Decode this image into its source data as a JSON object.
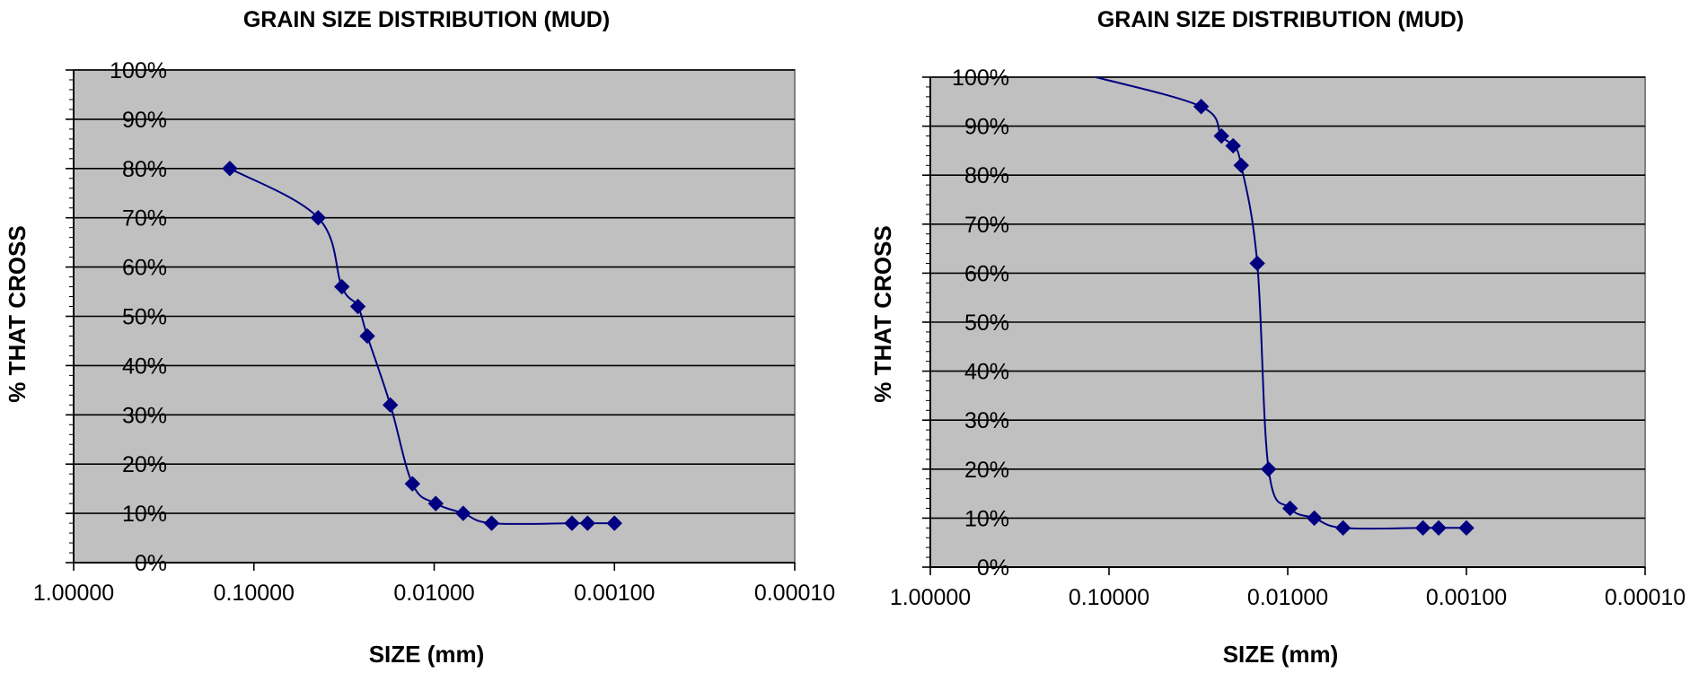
{
  "chart_data": [
    {
      "type": "line",
      "title": "GRAIN SIZE DISTRIBUTION (MUD)",
      "xlabel": "SIZE (mm)",
      "ylabel": "% THAT CROSS",
      "x_scale": "log",
      "x_reversed": true,
      "xlim": [
        1.0,
        0.0001
      ],
      "ylim": [
        0,
        100
      ],
      "x_tick_labels": [
        "1.00000",
        "0.10000",
        "0.01000",
        "0.00100",
        "0.00010"
      ],
      "x_tick_values": [
        1.0,
        0.1,
        0.01,
        0.001,
        0.0001
      ],
      "y_tick_labels": [
        "0%",
        "10%",
        "20%",
        "30%",
        "40%",
        "50%",
        "60%",
        "70%",
        "80%",
        "90%",
        "100%"
      ],
      "y_tick_values": [
        0,
        10,
        20,
        30,
        40,
        50,
        60,
        70,
        80,
        90,
        100
      ],
      "grid": "horizontal",
      "plot_background": "#c0c0c0",
      "line_color": "#000080",
      "marker": "diamond",
      "series": [
        {
          "x": [
            0.136,
            0.044,
            0.0325,
            0.0265,
            0.0235,
            0.0175,
            0.0132,
            0.0098,
            0.0069,
            0.0048,
            0.00172,
            0.00141,
            0.001
          ],
          "y": [
            80,
            70,
            56,
            52,
            46,
            32,
            16,
            12,
            10,
            8,
            8,
            8,
            8
          ]
        }
      ]
    },
    {
      "type": "line",
      "title": "GRAIN SIZE DISTRIBUTION (MUD)",
      "xlabel": "SIZE (mm)",
      "ylabel": "% THAT CROSS",
      "x_scale": "log",
      "x_reversed": true,
      "xlim": [
        1.0,
        0.0001
      ],
      "ylim": [
        0,
        100
      ],
      "x_tick_labels": [
        "1.00000",
        "0.10000",
        "0.01000",
        "0.00100",
        "0.00010"
      ],
      "x_tick_values": [
        1.0,
        0.1,
        0.01,
        0.001,
        0.0001
      ],
      "y_tick_labels": [
        "0%",
        "10%",
        "20%",
        "30%",
        "40%",
        "50%",
        "60%",
        "70%",
        "80%",
        "90%",
        "100%"
      ],
      "y_tick_values": [
        0,
        10,
        20,
        30,
        40,
        50,
        60,
        70,
        80,
        90,
        100
      ],
      "grid": "horizontal",
      "plot_background": "#c0c0c0",
      "line_color": "#000080",
      "marker": "diamond",
      "series": [
        {
          "x": [
            0.118,
            0.0305,
            0.0235,
            0.0202,
            0.0182,
            0.0148,
            0.0128,
            0.0097,
            0.0071,
            0.0049,
            0.00175,
            0.00143,
            0.001
          ],
          "y": [
            100,
            94,
            88,
            86,
            82,
            62,
            20,
            12,
            10,
            8,
            8,
            8,
            8
          ],
          "markers_from_index": 1
        }
      ]
    }
  ]
}
